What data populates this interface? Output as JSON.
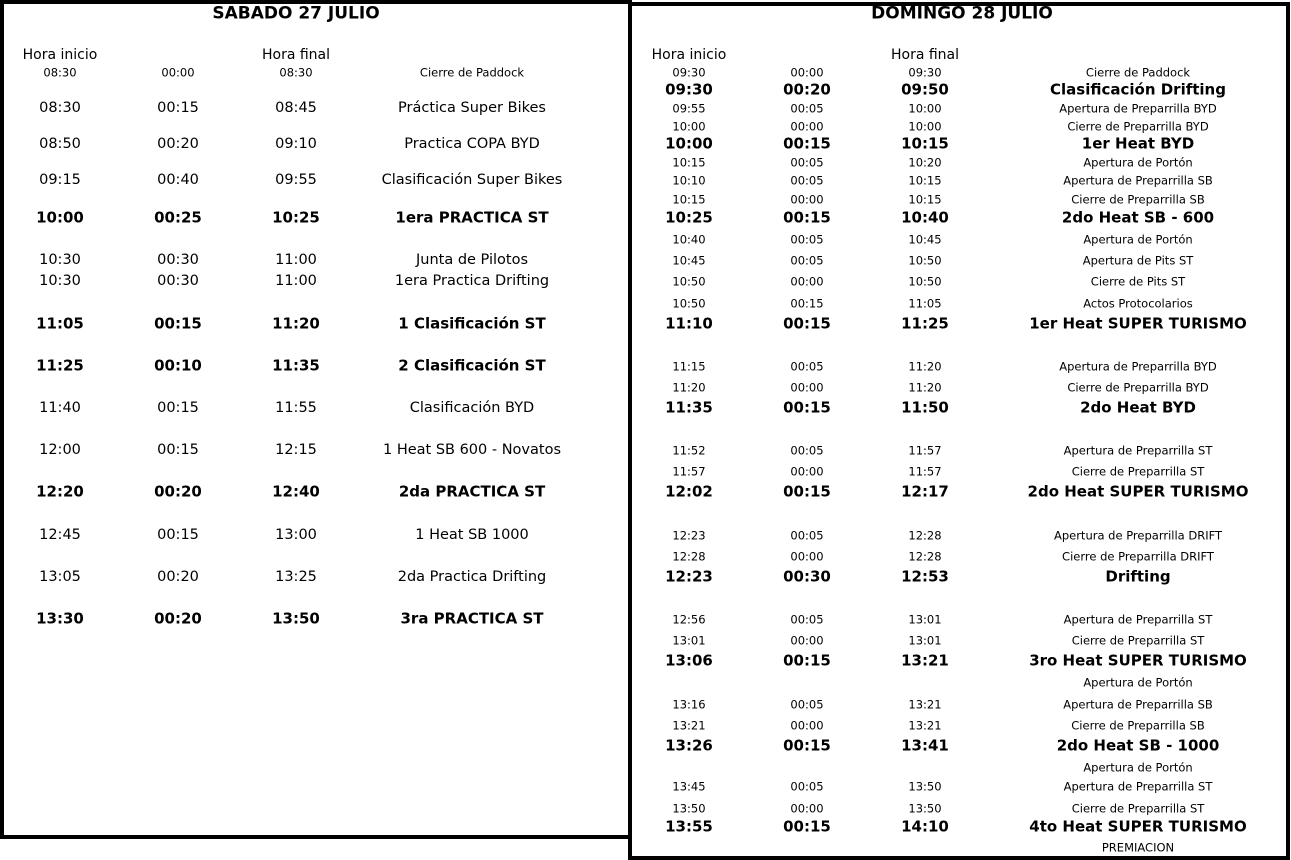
{
  "days": [
    {
      "title": "SABADO 27 JULIO",
      "header": {
        "start": "Hora inicio",
        "end": "Hora final"
      },
      "rows": [
        {
          "start": "08:30",
          "duration": "00:00",
          "end": "08:30",
          "activity": "Cierre de Paddock"
        },
        {
          "start": "08:30",
          "duration": "00:15",
          "end": "08:45",
          "activity": "Práctica Super Bikes"
        },
        {
          "start": "08:50",
          "duration": "00:20",
          "end": "09:10",
          "activity": "Practica COPA BYD"
        },
        {
          "start": "09:15",
          "duration": "00:40",
          "end": "09:55",
          "activity": "Clasificación Super Bikes"
        },
        {
          "start": "10:00",
          "duration": "00:25",
          "end": "10:25",
          "activity": "1era PRACTICA ST",
          "bold": true
        },
        {
          "start": "10:30",
          "duration": "00:30",
          "end": "11:00",
          "activity": "Junta de Pilotos"
        },
        {
          "start": "10:30",
          "duration": "00:30",
          "end": "11:00",
          "activity": "1era Practica Drifting"
        },
        {
          "start": "11:05",
          "duration": "00:15",
          "end": "11:20",
          "activity": "1 Clasificación ST",
          "bold": true
        },
        {
          "start": "11:25",
          "duration": "00:10",
          "end": "11:35",
          "activity": "2 Clasificación ST",
          "bold": true
        },
        {
          "start": "11:40",
          "duration": "00:15",
          "end": "11:55",
          "activity": "Clasificación BYD"
        },
        {
          "start": "12:00",
          "duration": "00:15",
          "end": "12:15",
          "activity": "1 Heat SB 600 - Novatos"
        },
        {
          "start": "12:20",
          "duration": "00:20",
          "end": "12:40",
          "activity": "2da PRACTICA ST",
          "bold": true
        },
        {
          "start": "12:45",
          "duration": "00:15",
          "end": "13:00",
          "activity": "1 Heat SB 1000"
        },
        {
          "start": "13:05",
          "duration": "00:20",
          "end": "13:25",
          "activity": "2da Practica Drifting"
        },
        {
          "start": "13:30",
          "duration": "00:20",
          "end": "13:50",
          "activity": "3ra PRACTICA ST",
          "bold": true
        }
      ]
    },
    {
      "title": "DOMINGO 28 JULIO",
      "header": {
        "start": "Hora inicio",
        "end": "Hora final"
      },
      "rows": [
        {
          "start": "09:30",
          "duration": "00:00",
          "end": "09:30",
          "activity": "Cierre de Paddock"
        },
        {
          "start": "09:30",
          "duration": "00:20",
          "end": "09:50",
          "activity": "Clasificación Drifting",
          "bold": true
        },
        {
          "start": "09:55",
          "duration": "00:05",
          "end": "10:00",
          "activity": "Apertura de Preparrilla BYD"
        },
        {
          "start": "10:00",
          "duration": "00:00",
          "end": "10:00",
          "activity": "Cierre de Preparrilla BYD"
        },
        {
          "start": "10:00",
          "duration": "00:15",
          "end": "10:15",
          "activity": "1er Heat BYD",
          "bold": true
        },
        {
          "start": "10:15",
          "duration": "00:05",
          "end": "10:20",
          "activity": "Apertura de Portón"
        },
        {
          "start": "10:10",
          "duration": "00:05",
          "end": "10:15",
          "activity": "Apertura de Preparrilla SB"
        },
        {
          "start": "10:15",
          "duration": "00:00",
          "end": "10:15",
          "activity": "Cierre de Preparrilla SB"
        },
        {
          "start": "10:25",
          "duration": "00:15",
          "end": "10:40",
          "activity": "2do Heat SB - 600",
          "bold": true
        },
        {
          "start": "10:40",
          "duration": "00:05",
          "end": "10:45",
          "activity": "Apertura de Portón"
        },
        {
          "start": "10:45",
          "duration": "00:05",
          "end": "10:50",
          "activity": "Apertura de Pits ST"
        },
        {
          "start": "10:50",
          "duration": "00:00",
          "end": "10:50",
          "activity": "Cierre de Pits ST"
        },
        {
          "start": "10:50",
          "duration": "00:15",
          "end": "11:05",
          "activity": "Actos Protocolarios"
        },
        {
          "start": "11:10",
          "duration": "00:15",
          "end": "11:25",
          "activity": "1er Heat SUPER TURISMO",
          "bold": true
        },
        {
          "start": "11:15",
          "duration": "00:05",
          "end": "11:20",
          "activity": "Apertura de Preparrilla BYD"
        },
        {
          "start": "11:20",
          "duration": "00:00",
          "end": "11:20",
          "activity": "Cierre de Preparrilla BYD"
        },
        {
          "start": "11:35",
          "duration": "00:15",
          "end": "11:50",
          "activity": "2do Heat BYD",
          "bold": true
        },
        {
          "start": "11:52",
          "duration": "00:05",
          "end": "11:57",
          "activity": "Apertura de Preparrilla ST"
        },
        {
          "start": "11:57",
          "duration": "00:00",
          "end": "11:57",
          "activity": "Cierre de Preparrilla ST"
        },
        {
          "start": "12:02",
          "duration": "00:15",
          "end": "12:17",
          "activity": "2do Heat SUPER TURISMO",
          "bold": true
        },
        {
          "start": "12:23",
          "duration": "00:05",
          "end": "12:28",
          "activity": "Apertura de Preparrilla DRIFT"
        },
        {
          "start": "12:28",
          "duration": "00:00",
          "end": "12:28",
          "activity": "Cierre de Preparrilla DRIFT"
        },
        {
          "start": "12:23",
          "duration": "00:30",
          "end": "12:53",
          "activity": "Drifting",
          "bold": true
        },
        {
          "start": "12:56",
          "duration": "00:05",
          "end": "13:01",
          "activity": "Apertura de Preparrilla ST"
        },
        {
          "start": "13:01",
          "duration": "00:00",
          "end": "13:01",
          "activity": "Cierre de Preparrilla ST"
        },
        {
          "start": "13:06",
          "duration": "00:15",
          "end": "13:21",
          "activity": "3ro Heat SUPER TURISMO",
          "bold": true
        },
        {
          "activity": "Apertura de Portón"
        },
        {
          "start": "13:16",
          "duration": "00:05",
          "end": "13:21",
          "activity": "Apertura de Preparrilla SB"
        },
        {
          "start": "13:21",
          "duration": "00:00",
          "end": "13:21",
          "activity": "Cierre de Preparrilla SB"
        },
        {
          "start": "13:26",
          "duration": "00:15",
          "end": "13:41",
          "activity": "2do Heat SB - 1000",
          "bold": true
        },
        {
          "activity": "Apertura de Portón"
        },
        {
          "start": "13:45",
          "duration": "00:05",
          "end": "13:50",
          "activity": "Apertura de Preparrilla ST"
        },
        {
          "start": "13:50",
          "duration": "00:00",
          "end": "13:50",
          "activity": "Cierre de Preparrilla ST"
        },
        {
          "start": "13:55",
          "duration": "00:15",
          "end": "14:10",
          "activity": "4to Heat SUPER TURISMO",
          "bold": true
        },
        {
          "activity": "PREMIACION"
        }
      ]
    }
  ]
}
